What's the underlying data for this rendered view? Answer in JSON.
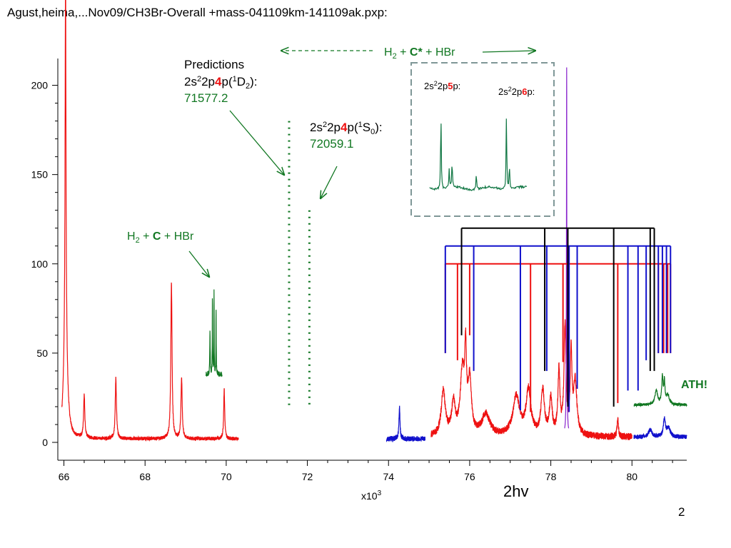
{
  "file_title": "Agust,heima,...Nov09/CH3Br-Overall +mass-041109km-141109ak.pxp:",
  "page_number": "2",
  "colors": {
    "red": "#ee1111",
    "blue": "#1111cc",
    "green": "#117722",
    "inset_green": "#117744",
    "black": "#000000",
    "purple": "#8822cc",
    "dashed_box": "#7f9797"
  },
  "chart_data": {
    "type": "line",
    "xlim": [
      65.85,
      81.35
    ],
    "ylim": [
      -10,
      215
    ],
    "x_tick_multiplier": "x10",
    "x_tick_multiplier_exp": "3",
    "xlabel": "2hv",
    "x_ticks": [
      {
        "value": 66,
        "label": "66"
      },
      {
        "value": 68,
        "label": "68"
      },
      {
        "value": 70,
        "label": "70"
      },
      {
        "value": 72,
        "label": "72"
      },
      {
        "value": 74,
        "label": "74"
      },
      {
        "value": 76,
        "label": "76"
      },
      {
        "value": 78,
        "label": "78"
      },
      {
        "value": 80,
        "label": "80"
      }
    ],
    "y_ticks": [
      {
        "value": 0,
        "label": "0"
      },
      {
        "value": 50,
        "label": "50"
      },
      {
        "value": 100,
        "label": "100"
      },
      {
        "value": 150,
        "label": "150"
      },
      {
        "value": 200,
        "label": "200"
      }
    ],
    "series": [
      {
        "color": "red",
        "segments": [
          {
            "range": [
              65.95,
              70.3
            ],
            "baseline": 2,
            "noise": 1.0,
            "peaks": [
              [
                66.04,
                207,
                0.012
              ],
              [
                66.04,
                60,
                0.05
              ],
              [
                66.5,
                24,
                0.018
              ],
              [
                67.28,
                34,
                0.018
              ],
              [
                68.65,
                88,
                0.018
              ],
              [
                68.9,
                34,
                0.018
              ],
              [
                69.95,
                28,
                0.015
              ]
            ]
          },
          {
            "range": [
              75.05,
              80.0
            ],
            "baseline": 3,
            "noise": 2.0,
            "peaks": [
              [
                75.35,
                25,
                0.06
              ],
              [
                75.6,
                18,
                0.05
              ],
              [
                75.82,
                35,
                0.06
              ],
              [
                75.9,
                40,
                0.025
              ],
              [
                76.0,
                30,
                0.05
              ],
              [
                76.4,
                12,
                0.12
              ],
              [
                77.15,
                22,
                0.1
              ],
              [
                77.45,
                25,
                0.07
              ],
              [
                77.8,
                25,
                0.05
              ],
              [
                78.0,
                20,
                0.04
              ],
              [
                78.2,
                35,
                0.03
              ],
              [
                78.35,
                60,
                0.03
              ],
              [
                78.5,
                45,
                0.025
              ],
              [
                78.6,
                30,
                0.05
              ],
              [
                79.65,
                10,
                0.02
              ]
            ]
          }
        ]
      },
      {
        "color": "blue",
        "segments": [
          {
            "range": [
              73.95,
              74.9
            ],
            "baseline": 2,
            "noise": 1.5,
            "peaks": [
              [
                74.27,
                18,
                0.015
              ]
            ]
          },
          {
            "range": [
              80.05,
              81.35
            ],
            "baseline": 3,
            "noise": 1.2,
            "peaks": [
              [
                80.45,
                4,
                0.05
              ],
              [
                80.8,
                10,
                0.03
              ],
              [
                80.9,
                5,
                0.05
              ]
            ]
          }
        ]
      },
      {
        "color": "green",
        "segments": [
          {
            "range": [
              69.5,
              69.9
            ],
            "baseline": 38,
            "noise": 1.5,
            "peaks": [
              [
                69.6,
                25,
                0.006
              ],
              [
                69.66,
                42,
                0.005
              ],
              [
                69.7,
                48,
                0.004
              ],
              [
                69.75,
                35,
                0.005
              ]
            ]
          },
          {
            "range": [
              80.05,
              81.35
            ],
            "baseline": 21,
            "noise": 0.8,
            "peaks": [
              [
                80.6,
                8,
                0.04
              ],
              [
                80.75,
                15,
                0.02
              ],
              [
                80.8,
                12,
                0.015
              ],
              [
                80.88,
                5,
                0.05
              ]
            ]
          }
        ]
      },
      {
        "color": "purple",
        "segments": [
          {
            "range": [
              78.34,
              78.44
            ],
            "baseline": 5,
            "noise": 0,
            "peaks": [
              [
                78.39,
                205,
                0.006
              ]
            ]
          }
        ]
      }
    ],
    "prediction_lines": [
      {
        "x": 71.55,
        "y_top": 180,
        "label_prefix": "2s",
        "label_sup1": "2",
        "label_mid": "2p",
        "label_n": "4",
        "label_suffix": "p(",
        "label_sup2": "1",
        "label_term": "D",
        "label_sub": "2",
        "label_end": "):",
        "value": "71577.2"
      },
      {
        "x": 72.05,
        "y_top": 130,
        "label_prefix": "2s",
        "label_sup1": "2",
        "label_mid": "2p",
        "label_n": "4",
        "label_suffix": "p(",
        "label_sup2": "1",
        "label_term": "S",
        "label_sub": "0",
        "label_end": "):",
        "value": "72059.1"
      }
    ],
    "predictions_heading": "Predictions",
    "combs": [
      {
        "color": "red",
        "y_bar": 100,
        "x_start": 75.4,
        "x_end": 80.95,
        "teeth": [
          [
            75.4,
            50
          ],
          [
            75.7,
            46
          ],
          [
            76.0,
            60
          ],
          [
            77.5,
            17
          ],
          [
            78.3,
            45
          ],
          [
            79.65,
            22
          ],
          [
            80.65,
            50
          ],
          [
            80.78,
            50
          ],
          [
            80.88,
            50
          ],
          [
            80.95,
            50
          ]
        ]
      },
      {
        "color": "blue",
        "y_bar": 110,
        "x_start": 75.4,
        "x_end": 80.95,
        "teeth": [
          [
            75.4,
            50
          ],
          [
            76.1,
            40
          ],
          [
            77.25,
            18
          ],
          [
            77.9,
            40
          ],
          [
            78.45,
            17
          ],
          [
            78.65,
            30
          ],
          [
            79.9,
            29
          ],
          [
            80.15,
            29
          ],
          [
            80.35,
            46
          ],
          [
            80.55,
            50
          ],
          [
            80.65,
            50
          ],
          [
            80.75,
            50
          ],
          [
            80.85,
            50
          ],
          [
            80.95,
            50
          ]
        ]
      },
      {
        "color": "black",
        "y_bar": 120,
        "x_start": 75.8,
        "x_end": 80.55,
        "teeth": [
          [
            75.8,
            60
          ],
          [
            77.85,
            40
          ],
          [
            78.42,
            20
          ],
          [
            79.55,
            20
          ],
          [
            80.45,
            40
          ],
          [
            80.55,
            40
          ]
        ]
      }
    ],
    "arrow_h2_c": {
      "text_pre": "H",
      "text_sub": "2",
      "text_mid": " + ",
      "text_bold": "C",
      "text_post": " + HBr"
    },
    "arrow_h2_cstar": {
      "text_pre": "H",
      "text_sub": "2",
      "text_mid": " + ",
      "text_bold": "C*",
      "text_post": " + HBr"
    },
    "inset": {
      "label_5": {
        "pre": "2s",
        "sup": "2",
        "mid": "2p",
        "n": "5",
        "post": "p:"
      },
      "label_6": {
        "pre": "2s",
        "sup": "2",
        "mid": "2p",
        "n": "6",
        "post": "p:"
      },
      "peaks": [
        [
          0.115,
          0.9
        ],
        [
          0.2,
          0.22
        ],
        [
          0.23,
          0.32
        ],
        [
          0.48,
          0.2
        ],
        [
          0.79,
          0.88
        ],
        [
          0.82,
          0.3
        ]
      ]
    },
    "ath_label": "ATH!"
  }
}
